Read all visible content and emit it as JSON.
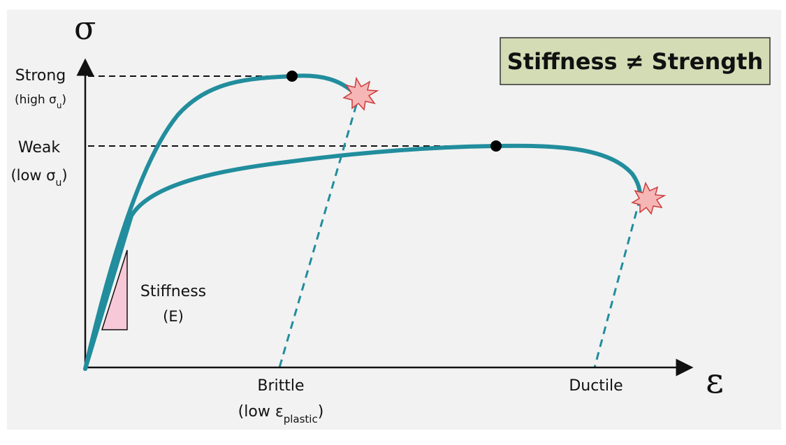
{
  "title_box": {
    "text": "Stiffness ≠ Strength",
    "fill": "#d3dcb5"
  },
  "axes": {
    "y_symbol": "σ",
    "x_symbol": "ε"
  },
  "y_labels": {
    "strong": "Strong",
    "strong_sub_pre": "(high σ",
    "strong_sub": "u",
    "strong_sub_post": ")",
    "weak": "Weak",
    "weak_sub_pre": "(low σ",
    "weak_sub": "u",
    "weak_sub_post": ")"
  },
  "stiffness": {
    "label": "Stiffness",
    "symbol": "(E)",
    "fill": "#f7c9d8"
  },
  "x_labels": {
    "brittle": "Brittle",
    "brittle_sub_pre": "(low ε",
    "brittle_sub": "plastic",
    "brittle_sub_post": ")",
    "ductile": "Ductile"
  },
  "colors": {
    "curve": "#218d9d",
    "fracture_fill": "#f6b6b6",
    "fracture_stroke": "#cc3b3b",
    "dashed_guide": "#111111",
    "axis": "#111111"
  }
}
